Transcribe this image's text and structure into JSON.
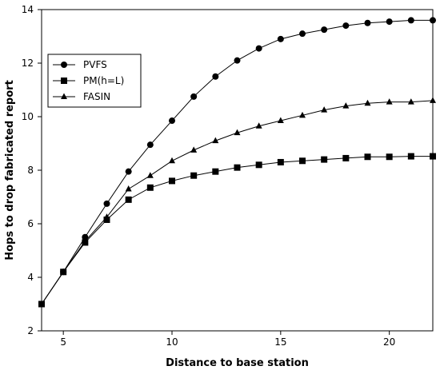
{
  "chart_data": {
    "type": "line",
    "title": "",
    "xlabel": "Distance to base station",
    "ylabel": "Hops to drop fabricated report",
    "xlim": [
      4,
      22
    ],
    "ylim": [
      2,
      14
    ],
    "xticks": [
      5,
      10,
      15,
      20
    ],
    "yticks": [
      2,
      4,
      6,
      8,
      10,
      12,
      14
    ],
    "grid": false,
    "legend_position": "top-left",
    "x": [
      4,
      5,
      6,
      7,
      8,
      9,
      10,
      11,
      12,
      13,
      14,
      15,
      16,
      17,
      18,
      19,
      20,
      21,
      22
    ],
    "series": [
      {
        "name": "PVFS",
        "marker": "circle",
        "values": [
          3.0,
          4.2,
          5.5,
          6.75,
          7.95,
          8.95,
          9.85,
          10.75,
          11.5,
          12.1,
          12.55,
          12.9,
          13.1,
          13.25,
          13.4,
          13.5,
          13.55,
          13.6,
          13.6
        ]
      },
      {
        "name": "PM(h=L)",
        "marker": "square",
        "values": [
          3.0,
          4.2,
          5.3,
          6.15,
          6.9,
          7.35,
          7.6,
          7.8,
          7.95,
          8.1,
          8.2,
          8.3,
          8.35,
          8.4,
          8.45,
          8.5,
          8.5,
          8.52,
          8.52
        ]
      },
      {
        "name": "FASIN",
        "marker": "triangle",
        "values": [
          3.0,
          4.2,
          5.35,
          6.25,
          7.3,
          7.8,
          8.35,
          8.75,
          9.1,
          9.4,
          9.65,
          9.85,
          10.05,
          10.25,
          10.4,
          10.5,
          10.55,
          10.55,
          10.6
        ]
      }
    ]
  }
}
